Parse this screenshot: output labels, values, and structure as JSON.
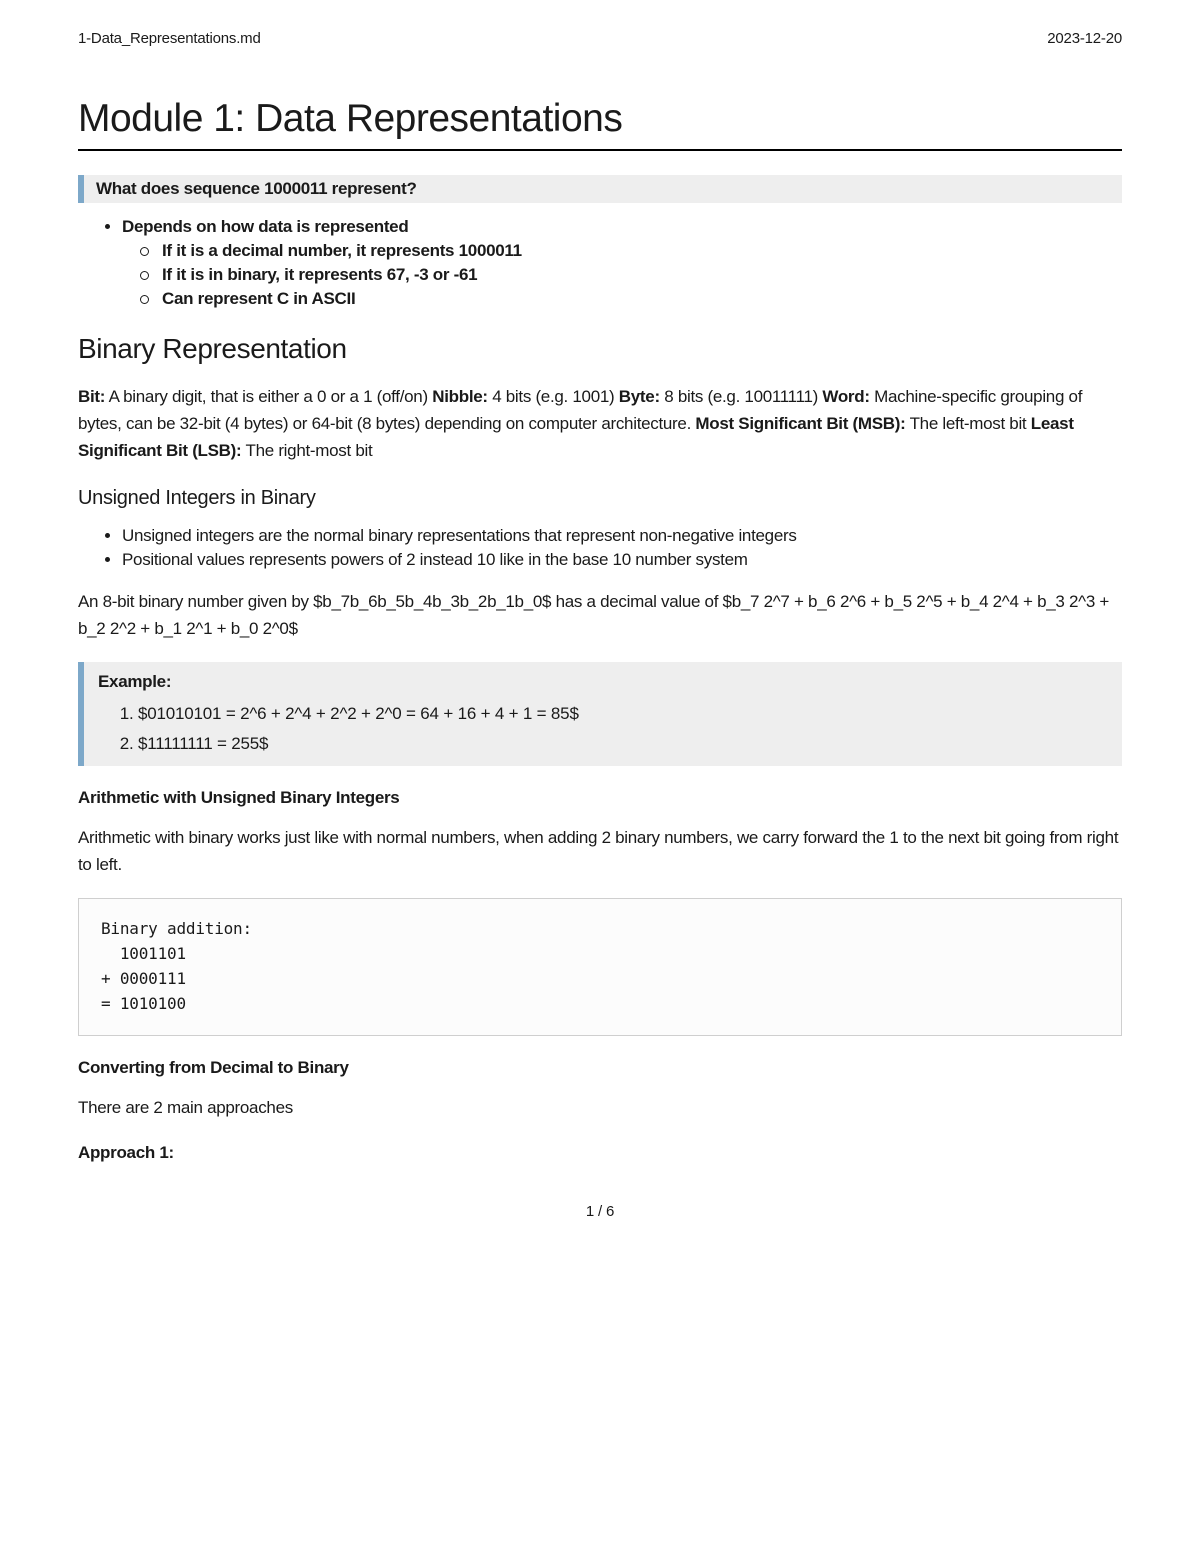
{
  "header": {
    "filename": "1-Data_Representations.md",
    "date": "2023-12-20"
  },
  "title": "Module 1: Data Representations",
  "callout1": "What does sequence 1000011 represent?",
  "list1": {
    "top": "Depends on how data is represented",
    "sub": [
      "If it is a decimal number, it represents 1000011",
      "If it is in binary, it represents 67, -3 or -61",
      "Can represent C in ASCII"
    ]
  },
  "h2_binary": "Binary Representation",
  "defs": {
    "bit_l": "Bit:",
    "bit_t": " A binary digit, that is either a 0 or a 1 (off/on) ",
    "nibble_l": "Nibble:",
    "nibble_t": " 4 bits (e.g. 1001) ",
    "byte_l": "Byte:",
    "byte_t": " 8 bits (e.g. 10011111) ",
    "word_l": "Word:",
    "word_t": " Machine-specific grouping of bytes, can be 32-bit (4 bytes) or 64-bit (8 bytes) depending on computer architecture. ",
    "msb_l": "Most Significant Bit (MSB):",
    "msb_t": " The left-most bit ",
    "lsb_l": "Least Significant Bit (LSB):",
    "lsb_t": " The right-most bit"
  },
  "h3_unsigned": "Unsigned Integers in Binary",
  "unsigned_list": [
    "Unsigned integers are the normal binary representations that represent non-negative integers",
    "Positional values represents powers of 2 instead 10 like in the base 10 number system"
  ],
  "formula_para": "An 8-bit binary number given by $b_7b_6b_5b_4b_3b_2b_1b_0$ has a decimal value of $b_7 2^7 + b_6 2^6 + b_5 2^5 + b_4 2^4 + b_3 2^3 + b_2 2^2 + b_1 2^1 + b_0 2^0$",
  "example": {
    "label": "Example:",
    "items": [
      "$01010101 = 2^6 + 2^4 + 2^2 + 2^0 = 64 + 16 + 4 + 1 = 85$",
      "$11111111 = 255$"
    ]
  },
  "h4_arith": "Arithmetic with Unsigned Binary Integers",
  "arith_para": "Arithmetic with binary works just like with normal numbers, when adding 2 binary numbers, we carry forward the 1 to the next bit going from right to left.",
  "code": "Binary addition:\n  1001101\n+ 0000111\n= 1010100",
  "h4_convert": "Converting from Decimal to Binary",
  "convert_para": "There are 2 main approaches",
  "h4_approach": "Approach 1:",
  "pagenum": "1 / 6",
  "style": {
    "accent_border": "#7da8c9",
    "callout_bg": "#eeeeee",
    "code_border": "#cfcfcf",
    "text_color": "#1a1a1a",
    "page_bg": "#ffffff"
  }
}
